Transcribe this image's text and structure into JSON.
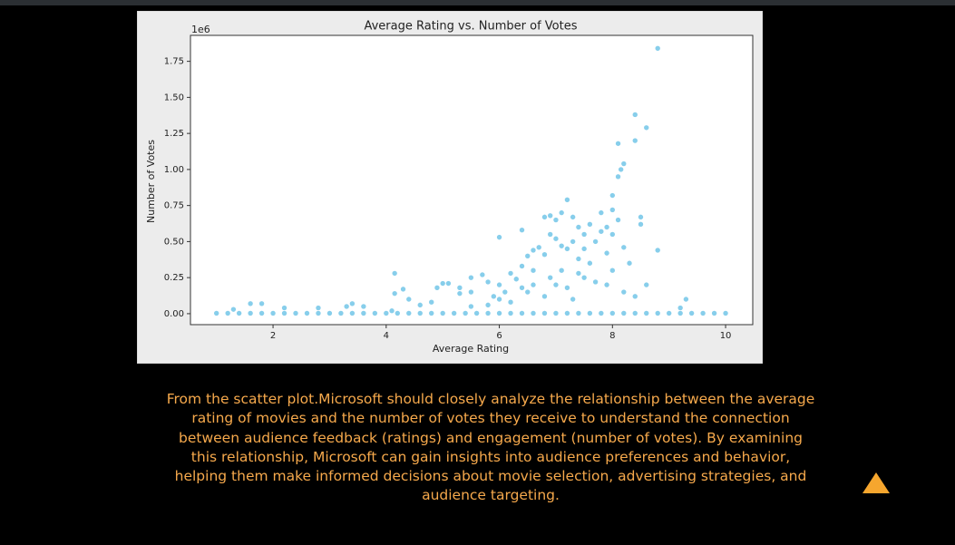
{
  "chart_data": {
    "type": "scatter",
    "title": "Average Rating vs. Number of Votes",
    "x_label": "Average Rating",
    "y_label": "Number of Votes",
    "offset_label": "1e6",
    "color": "#87ceeb",
    "x": [
      1.0,
      1.2,
      1.4,
      1.6,
      1.8,
      2.0,
      2.2,
      2.4,
      2.6,
      2.8,
      3.0,
      3.2,
      3.4,
      3.6,
      3.8,
      4.0,
      4.2,
      4.4,
      4.6,
      4.8,
      5.0,
      5.2,
      5.4,
      5.6,
      5.8,
      6.0,
      6.2,
      6.4,
      6.6,
      6.8,
      7.0,
      7.2,
      7.4,
      7.6,
      7.8,
      8.0,
      8.2,
      8.4,
      8.6,
      8.8,
      9.0,
      9.2,
      9.4,
      9.6,
      9.8,
      10.0,
      1.3,
      1.6,
      1.8,
      2.2,
      2.8,
      3.3,
      3.4,
      3.6,
      4.1,
      4.15,
      4.15,
      4.3,
      4.4,
      4.6,
      4.8,
      4.9,
      5.0,
      5.1,
      5.3,
      5.3,
      5.5,
      5.5,
      5.7,
      5.8,
      5.9,
      6.0,
      6.0,
      6.1,
      6.2,
      6.3,
      6.4,
      6.4,
      6.5,
      6.6,
      6.6,
      6.7,
      6.8,
      6.8,
      6.9,
      6.9,
      7.0,
      7.0,
      7.1,
      7.1,
      7.2,
      7.2,
      7.3,
      7.3,
      7.4,
      7.4,
      7.5,
      7.5,
      7.6,
      7.7,
      7.8,
      7.8,
      7.9,
      7.9,
      8.0,
      8.0,
      8.0,
      8.1,
      8.1,
      8.1,
      8.15,
      8.2,
      8.2,
      8.3,
      8.4,
      8.4,
      8.5,
      8.5,
      8.6,
      8.8,
      8.8,
      8.6,
      8.4,
      9.3,
      9.2,
      5.5,
      6.0,
      6.5,
      7.0,
      7.5,
      8.0,
      6.2,
      6.8,
      7.2,
      7.7,
      8.2,
      6.6,
      7.1,
      7.6,
      6.4,
      7.3,
      7.9,
      5.8,
      6.9,
      7.4
    ],
    "values": [
      0.003,
      0.003,
      0.003,
      0.003,
      0.003,
      0.003,
      0.003,
      0.003,
      0.003,
      0.003,
      0.003,
      0.003,
      0.003,
      0.003,
      0.003,
      0.003,
      0.003,
      0.003,
      0.003,
      0.003,
      0.003,
      0.003,
      0.003,
      0.003,
      0.003,
      0.003,
      0.003,
      0.003,
      0.003,
      0.003,
      0.003,
      0.003,
      0.003,
      0.003,
      0.003,
      0.003,
      0.003,
      0.003,
      0.003,
      0.003,
      0.003,
      0.003,
      0.003,
      0.003,
      0.003,
      0.003,
      0.03,
      0.07,
      0.07,
      0.04,
      0.04,
      0.05,
      0.07,
      0.05,
      0.02,
      0.28,
      0.14,
      0.17,
      0.1,
      0.06,
      0.08,
      0.18,
      0.21,
      0.21,
      0.18,
      0.14,
      0.25,
      0.15,
      0.27,
      0.22,
      0.12,
      0.53,
      0.2,
      0.15,
      0.28,
      0.24,
      0.58,
      0.33,
      0.4,
      0.44,
      0.3,
      0.46,
      0.41,
      0.67,
      0.68,
      0.55,
      0.65,
      0.52,
      0.7,
      0.47,
      0.79,
      0.45,
      0.67,
      0.5,
      0.6,
      0.38,
      0.55,
      0.45,
      0.62,
      0.5,
      0.7,
      0.57,
      0.6,
      0.42,
      0.82,
      0.72,
      0.55,
      1.18,
      0.95,
      0.65,
      1.0,
      1.04,
      0.46,
      0.35,
      1.38,
      1.2,
      0.67,
      0.62,
      1.29,
      1.84,
      0.44,
      0.2,
      0.12,
      0.1,
      0.04,
      0.05,
      0.1,
      0.15,
      0.2,
      0.25,
      0.3,
      0.08,
      0.12,
      0.18,
      0.22,
      0.15,
      0.2,
      0.3,
      0.35,
      0.18,
      0.1,
      0.2,
      0.06,
      0.25,
      0.28
    ],
    "xlim": [
      0.54,
      10.48
    ],
    "ylim": [
      -0.076,
      1.93
    ],
    "xticks": [
      2,
      4,
      6,
      8,
      10
    ],
    "yticks": [
      {
        "value": 0,
        "label": "0.00"
      },
      0.25,
      {
        "value": 0.5,
        "label": "0.50"
      },
      0.75,
      {
        "value": 1,
        "label": "1.00"
      },
      1.25,
      {
        "value": 1.5,
        "label": "1.50"
      },
      1.75
    ]
  },
  "paragraph": "From the scatter plot.Microsoft should closely analyze the relationship between the average rating of movies and the number of votes they receive to understand the connection between audience feedback (ratings) and engagement (number of votes). By examining this relationship, Microsoft can gain insights into audience preferences and behavior, helping them make informed decisions about movie selection, advertising strategies, and audience targeting."
}
